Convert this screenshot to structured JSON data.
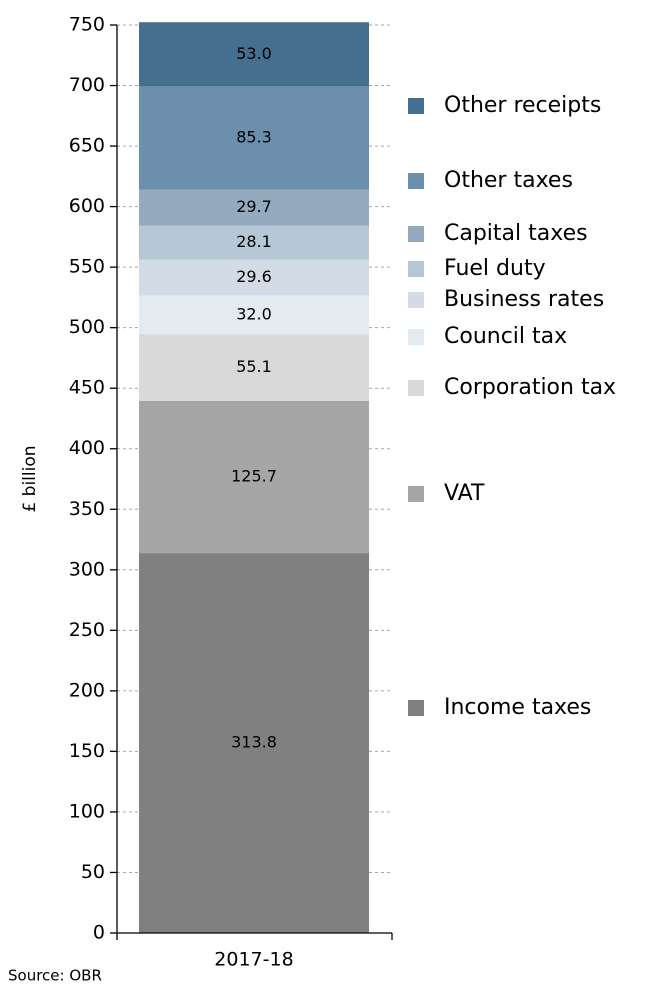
{
  "chart_data": {
    "type": "stacked-bar",
    "y_label": "£ billion",
    "source": "Source: OBR",
    "categories": [
      "2017-18"
    ],
    "ylim": [
      0,
      750
    ],
    "yticks": [
      0,
      50,
      100,
      150,
      200,
      250,
      300,
      350,
      400,
      450,
      500,
      550,
      600,
      650,
      700,
      750
    ],
    "grid": true,
    "series": [
      {
        "name": "Income taxes",
        "color": "#808080",
        "values": [
          313.8
        ],
        "value_labels": [
          "313.8"
        ]
      },
      {
        "name": "VAT",
        "color": "#a6a6a6",
        "values": [
          125.7
        ],
        "value_labels": [
          "125.7"
        ]
      },
      {
        "name": "Corporation tax",
        "color": "#d9d9d9",
        "values": [
          55.1
        ],
        "value_labels": [
          "55.1"
        ]
      },
      {
        "name": "Council tax",
        "color": "#e3eaf0",
        "values": [
          32.0
        ],
        "value_labels": [
          "32.0"
        ]
      },
      {
        "name": "Business rates",
        "color": "#d3dce6",
        "values": [
          29.6
        ],
        "value_labels": [
          "29.6"
        ]
      },
      {
        "name": "Fuel duty",
        "color": "#b6c7d6",
        "values": [
          28.1
        ],
        "value_labels": [
          "28.1"
        ]
      },
      {
        "name": "Capital taxes",
        "color": "#93aabf",
        "values": [
          29.7
        ],
        "value_labels": [
          "29.7"
        ]
      },
      {
        "name": "Other taxes",
        "color": "#6b8fac",
        "values": [
          85.3
        ],
        "value_labels": [
          "85.3"
        ]
      },
      {
        "name": "Other receipts",
        "color": "#466f8f",
        "values": [
          53.0
        ],
        "value_labels": [
          "53.0"
        ]
      }
    ]
  }
}
